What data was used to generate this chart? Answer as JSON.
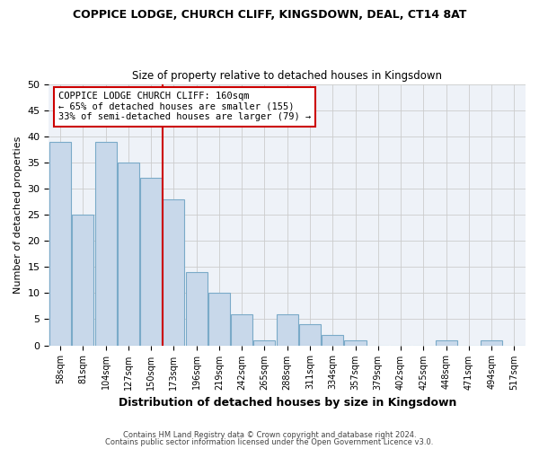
{
  "title": "COPPICE LODGE, CHURCH CLIFF, KINGSDOWN, DEAL, CT14 8AT",
  "subtitle": "Size of property relative to detached houses in Kingsdown",
  "xlabel": "Distribution of detached houses by size in Kingsdown",
  "ylabel": "Number of detached properties",
  "categories": [
    "58sqm",
    "81sqm",
    "104sqm",
    "127sqm",
    "150sqm",
    "173sqm",
    "196sqm",
    "219sqm",
    "242sqm",
    "265sqm",
    "288sqm",
    "311sqm",
    "334sqm",
    "357sqm",
    "379sqm",
    "402sqm",
    "425sqm",
    "448sqm",
    "471sqm",
    "494sqm",
    "517sqm"
  ],
  "values": [
    39,
    25,
    39,
    35,
    32,
    28,
    14,
    10,
    6,
    1,
    6,
    4,
    2,
    1,
    0,
    0,
    0,
    1,
    0,
    1,
    0
  ],
  "bar_color": "#c8d8ea",
  "bar_edge_color": "#7aaac8",
  "ylim": [
    0,
    50
  ],
  "yticks": [
    0,
    5,
    10,
    15,
    20,
    25,
    30,
    35,
    40,
    45,
    50
  ],
  "property_line_x": 4.5,
  "property_label": "COPPICE LODGE CHURCH CLIFF: 160sqm",
  "smaller_text": "← 65% of detached houses are smaller (155)",
  "larger_text": "33% of semi-detached houses are larger (79) →",
  "annotation_box_color": "#ffffff",
  "annotation_box_edge": "#cc0000",
  "property_line_color": "#cc0000",
  "grid_color": "#cccccc",
  "footer1": "Contains HM Land Registry data © Crown copyright and database right 2024.",
  "footer2": "Contains public sector information licensed under the Open Government Licence v3.0.",
  "bg_color": "#eef2f8"
}
